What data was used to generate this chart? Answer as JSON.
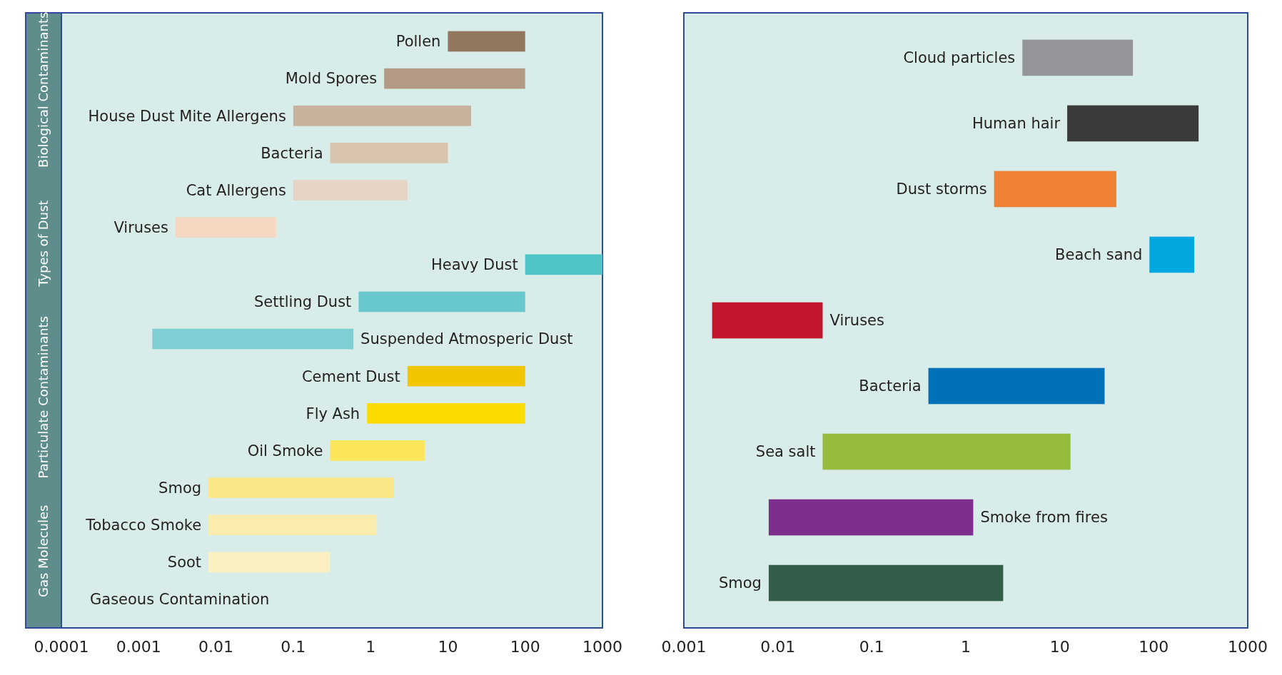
{
  "chart_data": [
    {
      "type": "bar",
      "orientation": "horizontal",
      "log": "x",
      "xlim": [
        0.0001,
        1000
      ],
      "xticks": [
        0.0001,
        0.001,
        0.01,
        0.1,
        1,
        10,
        100,
        1000
      ],
      "categories": [
        "Pollen",
        "Mold Spores",
        "House Dust Mite Allergens",
        "Bacteria",
        "Cat Allergens",
        "Viruses",
        "Heavy Dust",
        "Settling Dust",
        "Suspended Atmosperic Dust",
        "Cement Dust",
        "Fly Ash",
        "Oil Smoke",
        "Smog",
        "Tobacco Smoke",
        "Soot",
        "Gaseous Contamination"
      ],
      "base": [
        10,
        1.5,
        0.1,
        0.3,
        0.1,
        0.003,
        100,
        0.7,
        0.0015,
        3,
        0.9,
        0.3,
        0.008,
        0.008,
        0.008,
        null
      ],
      "values": [
        90,
        98.5,
        19.9,
        9.7,
        2.9,
        0.057,
        900,
        99.3,
        0.5985,
        97,
        99.1,
        4.7,
        1.992,
        1.192,
        0.292,
        null
      ],
      "colors": [
        "#937860",
        "#b39a84",
        "#c8b29e",
        "#d9c4b0",
        "#e6d5c4",
        "#f4d8c1",
        "#4fc4c6",
        "#69c8ce",
        "#7fced3",
        "#f1c500",
        "#fcdb00",
        "#fde55a",
        "#fbe787",
        "#f9ecad",
        "#fbf0c0",
        null
      ],
      "annotations": [
        "Biological Contaminants",
        "Types of Dust",
        "Particulate Contaminants",
        "Gas Molecules"
      ]
    },
    {
      "type": "bar",
      "orientation": "horizontal",
      "log": "x",
      "xlim": [
        0.001,
        1000
      ],
      "xticks": [
        0.001,
        0.01,
        0.1,
        1,
        10,
        100,
        1000
      ],
      "categories": [
        "Cloud particles",
        "Human hair",
        "Dust storms",
        "Beach sand",
        "Viruses",
        "Bacteria",
        "Sea salt",
        "Smoke from fires",
        "Smog"
      ],
      "base": [
        4,
        12,
        2,
        90,
        0.002,
        0.4,
        0.03,
        0.008,
        0.008
      ],
      "values": [
        56,
        288,
        38,
        180,
        0.028,
        29.6,
        12.97,
        1.192,
        2.492
      ],
      "colors": [
        "#939598",
        "#3a3a3a",
        "#f08133",
        "#00a8e0",
        "#c4162e",
        "#0070b8",
        "#96bc3d",
        "#7e2f8e",
        "#345e4a"
      ]
    }
  ]
}
